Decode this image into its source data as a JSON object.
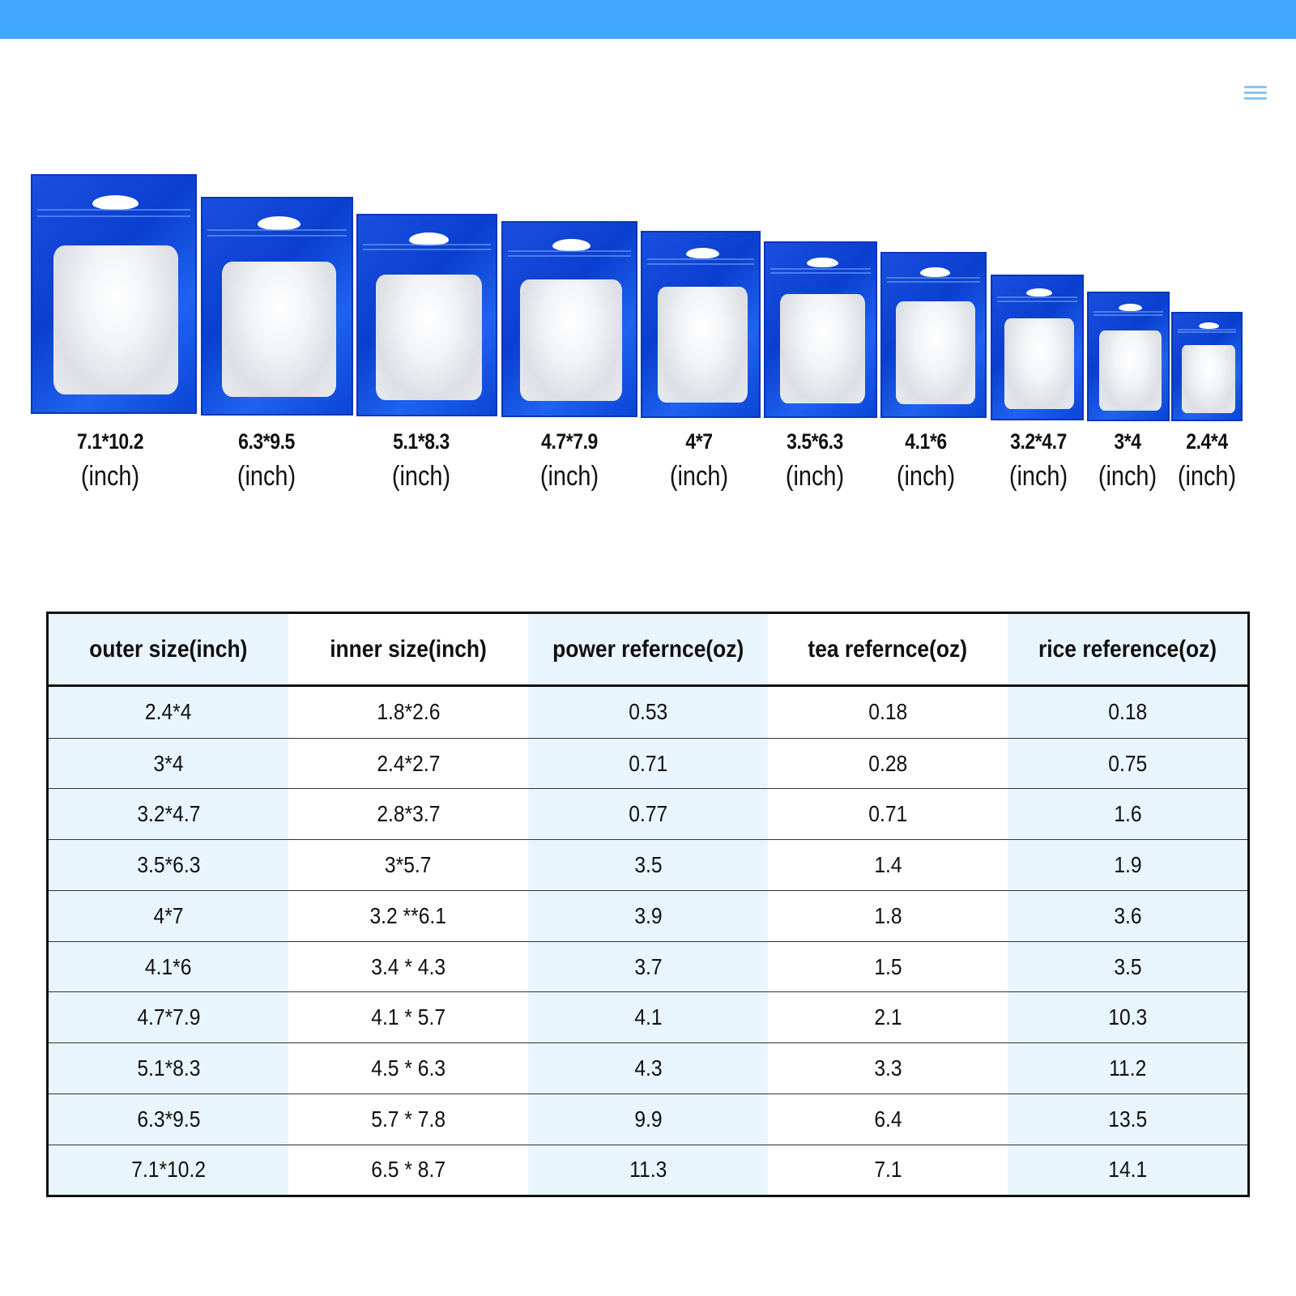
{
  "header": {
    "bar_color": "#40a9ff",
    "menu_icon": "hamburger-menu-icon"
  },
  "bags": [
    {
      "size": "7.1*10.2",
      "unit": "(inch)"
    },
    {
      "size": "6.3*9.5",
      "unit": "(inch)"
    },
    {
      "size": "5.1*8.3",
      "unit": "(inch)"
    },
    {
      "size": "4.7*7.9",
      "unit": "(inch)"
    },
    {
      "size": "4*7",
      "unit": "(inch)"
    },
    {
      "size": "3.5*6.3",
      "unit": "(inch)"
    },
    {
      "size": "4.1*6",
      "unit": "(inch)"
    },
    {
      "size": "3.2*4.7",
      "unit": "(inch)"
    },
    {
      "size": "3*4",
      "unit": "(inch)"
    },
    {
      "size": "2.4*4",
      "unit": "(inch)"
    }
  ],
  "table": {
    "headers": [
      "outer size(inch)",
      "inner size(inch)",
      "power refernce(oz)",
      "tea refernce(oz)",
      "rice reference(oz)"
    ],
    "rows": [
      [
        "2.4*4",
        "1.8*2.6",
        "0.53",
        "0.18",
        "0.18"
      ],
      [
        "3*4",
        "2.4*2.7",
        "0.71",
        "0.28",
        "0.75"
      ],
      [
        "3.2*4.7",
        "2.8*3.7",
        "0.77",
        "0.71",
        "1.6"
      ],
      [
        "3.5*6.3",
        "3*5.7",
        "3.5",
        "1.4",
        "1.9"
      ],
      [
        "4*7",
        "3.2 **6.1",
        "3.9",
        "1.8",
        "3.6"
      ],
      [
        "4.1*6",
        "3.4 * 4.3",
        "3.7",
        "1.5",
        "3.5"
      ],
      [
        "4.7*7.9",
        "4.1 * 5.7",
        "4.1",
        "2.1",
        "10.3"
      ],
      [
        "5.1*8.3",
        "4.5 * 6.3",
        "4.3",
        "3.3",
        "11.2"
      ],
      [
        "6.3*9.5",
        "5.7 * 7.8",
        "9.9",
        "6.4",
        "13.5"
      ],
      [
        "7.1*10.2",
        "6.5 * 8.7",
        "11.3",
        "7.1",
        "14.1"
      ]
    ]
  }
}
